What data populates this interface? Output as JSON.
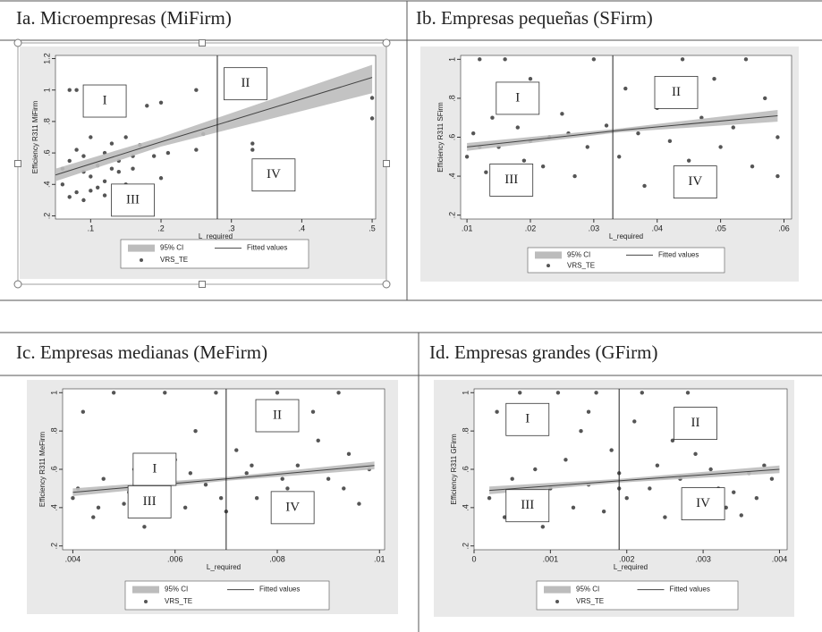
{
  "chart_data": [
    {
      "type": "scatter",
      "title": "Ia. Microempresas (MiFirm)",
      "ylabel": "Efficiency R311 MiFirm",
      "xlabel": "L_required",
      "xlim": [
        0.05,
        0.505
      ],
      "ylim": [
        0.18,
        1.22
      ],
      "xticks": [
        {
          "value": 0.1,
          "label": ".1"
        },
        {
          "value": 0.2,
          "label": ".2"
        },
        {
          "value": 0.3,
          "label": ".3"
        },
        {
          "value": 0.4,
          "label": ".4"
        },
        {
          "value": 0.5,
          "label": ".5"
        }
      ],
      "yticks": [
        {
          "value": 0.2,
          "label": ".2"
        },
        {
          "value": 0.4,
          "label": ".4"
        },
        {
          "value": 0.6,
          "label": ".6"
        },
        {
          "value": 0.8,
          "label": ".8"
        },
        1,
        1.2
      ],
      "vline": 0.28,
      "annotations": [
        {
          "text": "I",
          "x": 0.12,
          "y": 0.93
        },
        {
          "text": "II",
          "x": 0.32,
          "y": 1.04
        },
        {
          "text": "III",
          "x": 0.16,
          "y": 0.3
        },
        {
          "text": "IV",
          "x": 0.36,
          "y": 0.46
        }
      ],
      "series": [
        {
          "name": "95% CI",
          "color": "#bcbcbc",
          "x": [
            0.05,
            0.2,
            0.5
          ],
          "lower": [
            0.42,
            0.64,
            0.98
          ],
          "upper": [
            0.5,
            0.7,
            1.16
          ]
        },
        {
          "name": "Fitted values",
          "color": "#444444",
          "x": [
            0.05,
            0.2,
            0.5
          ],
          "values": [
            0.46,
            0.67,
            1.08
          ]
        },
        {
          "name": "VRS_TE",
          "color": "#555555",
          "x": [
            0.06,
            0.07,
            0.07,
            0.08,
            0.08,
            0.09,
            0.09,
            0.1,
            0.1,
            0.11,
            0.11,
            0.12,
            0.12,
            0.13,
            0.13,
            0.14,
            0.15,
            0.15,
            0.16,
            0.17,
            0.18,
            0.2,
            0.2,
            0.21,
            0.25,
            0.25,
            0.26,
            0.33,
            0.33,
            0.5,
            0.5,
            0.06,
            0.08,
            0.07,
            0.09,
            0.1,
            0.12,
            0.14,
            0.16,
            0.19
          ],
          "values": [
            0.4,
            0.55,
            1.0,
            0.35,
            0.62,
            0.48,
            0.3,
            0.45,
            0.7,
            0.52,
            0.38,
            0.6,
            0.42,
            0.5,
            0.66,
            0.55,
            0.4,
            0.7,
            0.58,
            0.65,
            0.9,
            0.44,
            0.92,
            0.6,
            0.62,
            1.0,
            0.72,
            0.66,
            0.62,
            0.95,
            0.82,
            0.5,
            1.0,
            0.32,
            0.58,
            0.36,
            0.33,
            0.48,
            0.5,
            0.58
          ]
        }
      ]
    },
    {
      "type": "scatter",
      "title": "Ib. Empresas pequeñas (SFirm)",
      "ylabel": "Efficiency R311 SFirm",
      "xlabel": "L_required",
      "xlim": [
        0.009,
        0.0612
      ],
      "ylim": [
        0.18,
        1.02
      ],
      "xticks": [
        {
          "value": 0.01,
          "label": ".01"
        },
        {
          "value": 0.02,
          "label": ".02"
        },
        {
          "value": 0.03,
          "label": ".03"
        },
        {
          "value": 0.04,
          "label": ".04"
        },
        {
          "value": 0.05,
          "label": ".05"
        },
        {
          "value": 0.06,
          "label": ".06"
        }
      ],
      "yticks": [
        {
          "value": 0.2,
          "label": ".2"
        },
        {
          "value": 0.4,
          "label": ".4"
        },
        {
          "value": 0.6,
          "label": ".6"
        },
        {
          "value": 0.8,
          "label": ".8"
        },
        1
      ],
      "vline": 0.033,
      "annotations": [
        {
          "text": "I",
          "x": 0.018,
          "y": 0.8
        },
        {
          "text": "II",
          "x": 0.043,
          "y": 0.83
        },
        {
          "text": "III",
          "x": 0.017,
          "y": 0.38
        },
        {
          "text": "IV",
          "x": 0.046,
          "y": 0.37
        }
      ],
      "series": [
        {
          "name": "95% CI",
          "color": "#bcbcbc",
          "x": [
            0.01,
            0.034,
            0.059
          ],
          "lower": [
            0.53,
            0.625,
            0.68
          ],
          "upper": [
            0.57,
            0.645,
            0.74
          ]
        },
        {
          "name": "Fitted values",
          "color": "#444444",
          "x": [
            0.01,
            0.034,
            0.059
          ],
          "values": [
            0.55,
            0.635,
            0.71
          ]
        },
        {
          "name": "VRS_TE",
          "color": "#555555",
          "x": [
            0.01,
            0.011,
            0.012,
            0.013,
            0.014,
            0.015,
            0.016,
            0.017,
            0.018,
            0.019,
            0.02,
            0.021,
            0.022,
            0.023,
            0.025,
            0.027,
            0.029,
            0.03,
            0.032,
            0.034,
            0.035,
            0.037,
            0.038,
            0.04,
            0.042,
            0.044,
            0.045,
            0.047,
            0.049,
            0.05,
            0.052,
            0.054,
            0.055,
            0.057,
            0.059,
            0.059,
            0.012,
            0.015,
            0.02,
            0.026
          ],
          "values": [
            0.5,
            0.62,
            1.0,
            0.42,
            0.7,
            0.55,
            1.0,
            0.38,
            0.65,
            0.48,
            0.58,
            0.8,
            0.45,
            0.6,
            0.72,
            0.4,
            0.55,
            1.0,
            0.66,
            0.5,
            0.85,
            0.62,
            0.35,
            0.75,
            0.58,
            1.0,
            0.48,
            0.7,
            0.9,
            0.55,
            0.65,
            1.0,
            0.45,
            0.8,
            0.6,
            0.4,
            0.55,
            0.45,
            0.9,
            0.62
          ]
        }
      ]
    },
    {
      "type": "scatter",
      "title": "Ic. Empresas medianas (MeFirm)",
      "ylabel": "Efficiency R311 MeFirm",
      "xlabel": "L_required",
      "xlim": [
        0.0038,
        0.0101
      ],
      "ylim": [
        0.18,
        1.02
      ],
      "xticks": [
        {
          "value": 0.004,
          "label": ".004"
        },
        {
          "value": 0.006,
          "label": ".006"
        },
        {
          "value": 0.008,
          "label": ".008"
        },
        {
          "value": 0.01,
          "label": ".01"
        }
      ],
      "yticks": [
        {
          "value": 0.2,
          "label": ".2"
        },
        {
          "value": 0.4,
          "label": ".4"
        },
        {
          "value": 0.6,
          "label": ".6"
        },
        {
          "value": 0.8,
          "label": ".8"
        },
        1
      ],
      "vline": 0.007,
      "annotations": [
        {
          "text": "I",
          "x": 0.0056,
          "y": 0.6
        },
        {
          "text": "II",
          "x": 0.008,
          "y": 0.88
        },
        {
          "text": "III",
          "x": 0.0055,
          "y": 0.43
        },
        {
          "text": "IV",
          "x": 0.0083,
          "y": 0.4
        }
      ],
      "series": [
        {
          "name": "95% CI",
          "color": "#bcbcbc",
          "x": [
            0.004,
            0.007,
            0.0099
          ],
          "lower": [
            0.46,
            0.54,
            0.6
          ],
          "upper": [
            0.5,
            0.56,
            0.64
          ]
        },
        {
          "name": "Fitted values",
          "color": "#444444",
          "x": [
            0.004,
            0.007,
            0.0099
          ],
          "values": [
            0.48,
            0.55,
            0.62
          ]
        },
        {
          "name": "VRS_TE",
          "color": "#555555",
          "x": [
            0.004,
            0.0042,
            0.0044,
            0.0046,
            0.0048,
            0.005,
            0.0052,
            0.0054,
            0.0056,
            0.0058,
            0.006,
            0.0062,
            0.0064,
            0.0066,
            0.0068,
            0.007,
            0.0072,
            0.0074,
            0.0076,
            0.0078,
            0.008,
            0.0082,
            0.0084,
            0.0086,
            0.0088,
            0.009,
            0.0092,
            0.0094,
            0.0096,
            0.0098,
            0.0041,
            0.0045,
            0.0051,
            0.0057,
            0.0063,
            0.0069,
            0.0075,
            0.0081,
            0.0087,
            0.0093
          ],
          "values": [
            0.45,
            0.9,
            0.35,
            0.55,
            1.0,
            0.42,
            0.6,
            0.3,
            0.5,
            1.0,
            0.65,
            0.4,
            0.8,
            0.52,
            1.0,
            0.38,
            0.7,
            0.58,
            0.45,
            0.85,
            1.0,
            0.5,
            0.62,
            0.35,
            0.75,
            0.55,
            1.0,
            0.68,
            0.42,
            0.6,
            0.5,
            0.4,
            0.48,
            0.36,
            0.58,
            0.45,
            0.62,
            0.55,
            0.9,
            0.5
          ]
        }
      ]
    },
    {
      "type": "scatter",
      "title": "Id. Empresas grandes (GFirm)",
      "ylabel": "Efficiency R311 GFirm",
      "xlabel": "L_required",
      "xlim": [
        0,
        0.0041
      ],
      "ylim": [
        0.18,
        1.02
      ],
      "xticks": [
        0,
        {
          "value": 0.001,
          "label": ".001"
        },
        {
          "value": 0.002,
          "label": ".002"
        },
        {
          "value": 0.003,
          "label": ".003"
        },
        {
          "value": 0.004,
          "label": ".004"
        }
      ],
      "yticks": [
        {
          "value": 0.2,
          "label": ".2"
        },
        {
          "value": 0.4,
          "label": ".4"
        },
        {
          "value": 0.6,
          "label": ".6"
        },
        {
          "value": 0.8,
          "label": ".8"
        },
        1
      ],
      "vline": 0.0019,
      "annotations": [
        {
          "text": "I",
          "x": 0.0007,
          "y": 0.86
        },
        {
          "text": "II",
          "x": 0.0029,
          "y": 0.84
        },
        {
          "text": "III",
          "x": 0.0007,
          "y": 0.41
        },
        {
          "text": "IV",
          "x": 0.003,
          "y": 0.42
        }
      ],
      "series": [
        {
          "name": "95% CI",
          "color": "#bcbcbc",
          "x": [
            0.0002,
            0.0019,
            0.004
          ],
          "lower": [
            0.47,
            0.53,
            0.58
          ],
          "upper": [
            0.51,
            0.55,
            0.62
          ]
        },
        {
          "name": "Fitted values",
          "color": "#444444",
          "x": [
            0.0002,
            0.0019,
            0.004
          ],
          "values": [
            0.49,
            0.54,
            0.6
          ]
        },
        {
          "name": "VRS_TE",
          "color": "#555555",
          "x": [
            0.0002,
            0.0003,
            0.0004,
            0.0005,
            0.0006,
            0.0007,
            0.0008,
            0.0009,
            0.001,
            0.0011,
            0.0012,
            0.0013,
            0.0014,
            0.0015,
            0.0016,
            0.0017,
            0.0018,
            0.0019,
            0.002,
            0.0021,
            0.0022,
            0.0023,
            0.0024,
            0.0025,
            0.0026,
            0.0027,
            0.0028,
            0.0029,
            0.003,
            0.0031,
            0.0032,
            0.0033,
            0.0034,
            0.0035,
            0.0036,
            0.0037,
            0.0038,
            0.0039,
            0.0015,
            0.0019
          ],
          "values": [
            0.45,
            0.9,
            0.35,
            0.55,
            1.0,
            0.42,
            0.6,
            0.3,
            0.5,
            1.0,
            0.65,
            0.4,
            0.8,
            0.52,
            1.0,
            0.38,
            0.7,
            0.58,
            0.45,
            0.85,
            1.0,
            0.5,
            0.62,
            0.35,
            0.75,
            0.55,
            1.0,
            0.68,
            0.42,
            0.6,
            0.5,
            0.4,
            0.48,
            0.36,
            0.58,
            0.45,
            0.62,
            0.55,
            0.9,
            0.5
          ]
        }
      ]
    }
  ]
}
